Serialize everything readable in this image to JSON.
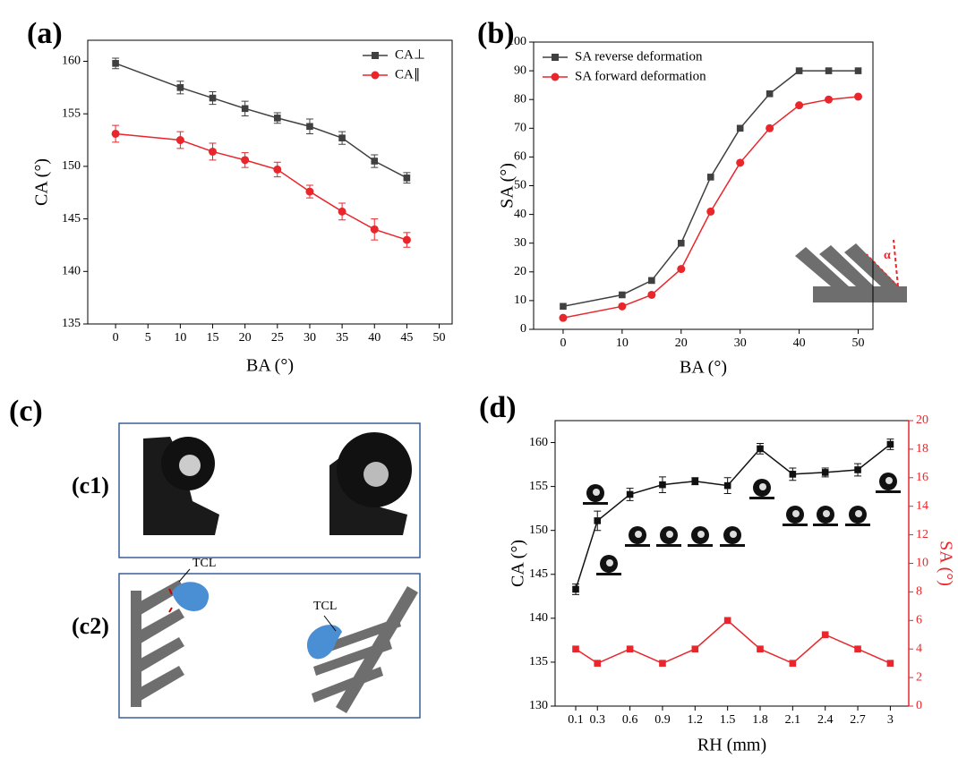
{
  "chart_data": [
    {
      "type": "line",
      "label": "(a)",
      "x_label": "BA (°)",
      "y_label": "CA (°)",
      "x": [
        0,
        10,
        15,
        20,
        25,
        30,
        35,
        40,
        45
      ],
      "xlim": [
        -4.3,
        52
      ],
      "xticks": [
        0,
        5,
        10,
        15,
        20,
        25,
        30,
        35,
        40,
        45,
        50
      ],
      "ylim": [
        135,
        162
      ],
      "yticks": [
        135,
        140,
        145,
        150,
        155,
        160
      ],
      "legend": "upper right",
      "series": [
        {
          "name": "CA⊥",
          "color": "#404040",
          "marker": "square",
          "values": [
            159.8,
            157.5,
            156.5,
            155.5,
            154.6,
            153.8,
            152.7,
            150.5,
            148.9
          ],
          "errors": [
            0.5,
            0.6,
            0.6,
            0.7,
            0.5,
            0.7,
            0.6,
            0.6,
            0.5
          ]
        },
        {
          "name": "CA∥",
          "color": "#e8262b",
          "marker": "circle",
          "values": [
            153.1,
            152.5,
            151.4,
            150.6,
            149.7,
            147.6,
            145.7,
            144.0,
            143.0
          ],
          "errors": [
            0.8,
            0.8,
            0.8,
            0.7,
            0.7,
            0.6,
            0.8,
            1.0,
            0.7
          ]
        }
      ]
    },
    {
      "type": "line",
      "label": "(b)",
      "x_label": "BA (°)",
      "y_label": "SA (°)",
      "annotation": "α",
      "x": [
        0,
        10,
        15,
        20,
        25,
        30,
        35,
        40,
        45,
        50
      ],
      "xlim": [
        -5,
        52.5
      ],
      "xticks": [
        0,
        10,
        20,
        30,
        40,
        50
      ],
      "ylim": [
        0,
        100
      ],
      "yticks": [
        0,
        10,
        20,
        30,
        40,
        50,
        60,
        70,
        80,
        90,
        100
      ],
      "legend": "upper left",
      "series": [
        {
          "name": "SA reverse deformation",
          "color": "#404040",
          "marker": "square",
          "values": [
            8,
            12,
            17,
            30,
            53,
            70,
            82,
            90,
            90,
            90
          ]
        },
        {
          "name": "SA forward deformation",
          "color": "#e8262b",
          "marker": "circle",
          "values": [
            4,
            8,
            12,
            21,
            41,
            58,
            70,
            78,
            80,
            81
          ]
        }
      ]
    },
    {
      "type": "line",
      "label": "(d)",
      "x_label": "RH (mm)",
      "y_label": "CA (°)",
      "y2_label": "SA (°)",
      "x": [
        0.1,
        0.3,
        0.6,
        0.9,
        1.2,
        1.5,
        1.8,
        2.1,
        2.4,
        2.7,
        3
      ],
      "xlim": [
        -0.09,
        3.17
      ],
      "xticks": [
        0.1,
        0.3,
        0.6,
        0.9,
        1.2,
        1.5,
        1.8,
        2.1,
        2.4,
        2.7,
        3
      ],
      "ylim": [
        130,
        162.5
      ],
      "yticks": [
        130,
        135,
        140,
        145,
        150,
        155,
        160
      ],
      "y2lim": [
        0,
        20
      ],
      "y2ticks": [
        0,
        2,
        4,
        6,
        8,
        10,
        12,
        14,
        16,
        18,
        20
      ],
      "series": [
        {
          "color": "#111111",
          "marker": "square",
          "values": [
            143.3,
            151.1,
            154.1,
            155.2,
            155.6,
            155.1,
            159.3,
            156.4,
            156.6,
            156.9,
            159.8
          ],
          "errors": [
            0.6,
            1.1,
            0.7,
            0.9,
            0.4,
            0.9,
            0.6,
            0.7,
            0.5,
            0.7,
            0.6
          ]
        },
        {
          "color": "#e8262b",
          "marker": "square",
          "axis": "y2",
          "values": [
            4,
            3,
            4,
            3,
            4,
            6,
            4,
            3,
            5,
            4,
            3
          ]
        }
      ]
    }
  ],
  "panel_c": {
    "label": "(c)",
    "rows": [
      {
        "label": "(c1)"
      },
      {
        "label": "(c2)",
        "annotations": [
          "TCL",
          "TCL"
        ]
      }
    ]
  }
}
